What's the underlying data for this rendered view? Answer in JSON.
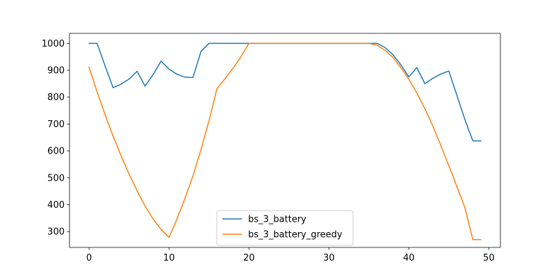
{
  "chart_data": {
    "type": "line",
    "title": "",
    "xlabel": "",
    "ylabel": "",
    "xlim": [
      -2.45,
      51.45
    ],
    "ylim": [
      241,
      1037
    ],
    "xticks": [
      0,
      10,
      20,
      30,
      40,
      50
    ],
    "yticks": [
      300,
      400,
      500,
      600,
      700,
      800,
      900,
      1000
    ],
    "grid": false,
    "legend_position": "lower center",
    "x": [
      0,
      1,
      2,
      3,
      4,
      5,
      6,
      7,
      8,
      9,
      10,
      11,
      12,
      13,
      14,
      15,
      16,
      17,
      18,
      19,
      20,
      21,
      22,
      23,
      24,
      25,
      26,
      27,
      28,
      29,
      30,
      31,
      32,
      33,
      34,
      35,
      36,
      37,
      38,
      39,
      40,
      41,
      42,
      43,
      44,
      45,
      46,
      47,
      48,
      49
    ],
    "series": [
      {
        "name": "bs_3_battery",
        "color": "#1f77b4",
        "values": [
          1000,
          1000,
          916,
          835,
          848,
          867,
          896,
          841,
          883,
          934,
          904,
          885,
          874,
          873,
          970,
          1000,
          1000,
          1000,
          1000,
          1000,
          1000,
          1000,
          1000,
          1000,
          1000,
          1000,
          1000,
          1000,
          1000,
          1000,
          1000,
          1000,
          1000,
          1000,
          1000,
          1000,
          1000,
          985,
          958,
          920,
          875,
          910,
          850,
          870,
          886,
          897,
          807,
          717,
          637,
          637
        ]
      },
      {
        "name": "bs_3_battery_greedy",
        "color": "#ff7f0e",
        "values": [
          911,
          820,
          735,
          655,
          582,
          514,
          452,
          395,
          347,
          308,
          278,
          347,
          424,
          508,
          605,
          712,
          832,
          868,
          907,
          950,
          1000,
          1000,
          1000,
          1000,
          1000,
          1000,
          1000,
          1000,
          1000,
          1000,
          1000,
          1000,
          1000,
          1000,
          1000,
          1000,
          993,
          975,
          948,
          910,
          866,
          815,
          757,
          692,
          620,
          545,
          468,
          390,
          270,
          270
        ]
      }
    ]
  }
}
